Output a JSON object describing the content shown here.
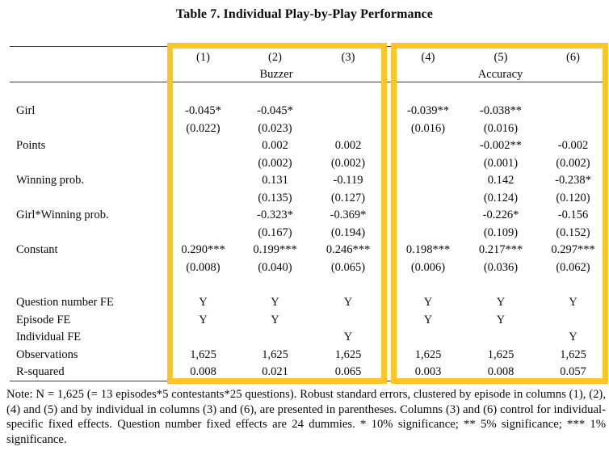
{
  "title": "Table 7. Individual Play-by-Play Performance",
  "highlight_color": "#FFC425",
  "table": {
    "column_ids": [
      "(1)",
      "(2)",
      "(3)",
      "(4)",
      "(5)",
      "(6)"
    ],
    "group_headers": [
      {
        "label": "Buzzer",
        "columns": [
          "(1)",
          "(2)",
          "(3)"
        ]
      },
      {
        "label": "Accuracy",
        "columns": [
          "(4)",
          "(5)",
          "(6)"
        ]
      }
    ],
    "coef_rows": [
      {
        "label": "Girl",
        "coefs": [
          "-0.045*",
          "-0.045*",
          "",
          "-0.039**",
          "-0.038**",
          ""
        ],
        "ses": [
          "(0.022)",
          "(0.023)",
          "",
          "(0.016)",
          "(0.016)",
          ""
        ]
      },
      {
        "label": "Points",
        "coefs": [
          "",
          "0.002",
          "0.002",
          "",
          "-0.002**",
          "-0.002"
        ],
        "ses": [
          "",
          "(0.002)",
          "(0.002)",
          "",
          "(0.001)",
          "(0.002)"
        ]
      },
      {
        "label": "Winning prob.",
        "coefs": [
          "",
          "0.131",
          "-0.119",
          "",
          "0.142",
          "-0.238*"
        ],
        "ses": [
          "",
          "(0.135)",
          "(0.127)",
          "",
          "(0.124)",
          "(0.120)"
        ]
      },
      {
        "label": "Girl*Winning prob.",
        "coefs": [
          "",
          "-0.323*",
          "-0.369*",
          "",
          "-0.226*",
          "-0.156"
        ],
        "ses": [
          "",
          "(0.167)",
          "(0.194)",
          "",
          "(0.109)",
          "(0.152)"
        ]
      },
      {
        "label": "Constant",
        "coefs": [
          "0.290***",
          "0.199***",
          "0.246***",
          "0.198***",
          "0.217***",
          "0.297***"
        ],
        "ses": [
          "(0.008)",
          "(0.040)",
          "(0.065)",
          "(0.006)",
          "(0.036)",
          "(0.062)"
        ]
      }
    ],
    "stat_rows": [
      {
        "label": "Question number FE",
        "values": [
          "Y",
          "Y",
          "Y",
          "Y",
          "Y",
          "Y"
        ]
      },
      {
        "label": "Episode FE",
        "values": [
          "Y",
          "Y",
          "",
          "Y",
          "Y",
          ""
        ]
      },
      {
        "label": "Individual FE",
        "values": [
          "",
          "",
          "Y",
          "",
          "",
          "Y"
        ]
      },
      {
        "label": "Observations",
        "values": [
          "1,625",
          "1,625",
          "1,625",
          "1,625",
          "1,625",
          "1,625"
        ]
      },
      {
        "label": "R-squared",
        "values": [
          "0.008",
          "0.021",
          "0.065",
          "0.003",
          "0.008",
          "0.057"
        ]
      }
    ]
  },
  "note": "Note: N = 1,625 (= 13 episodes*5 contestants*25 questions). Robust standard errors, clustered by episode in columns (1), (2), (4) and (5) and by individual in columns (3) and (6), are presented in parentheses. Columns (3) and (6) control for individual-specific fixed effects. Question number fixed effects are 24 dummies. * 10% significance; ** 5% significance; *** 1% significance."
}
